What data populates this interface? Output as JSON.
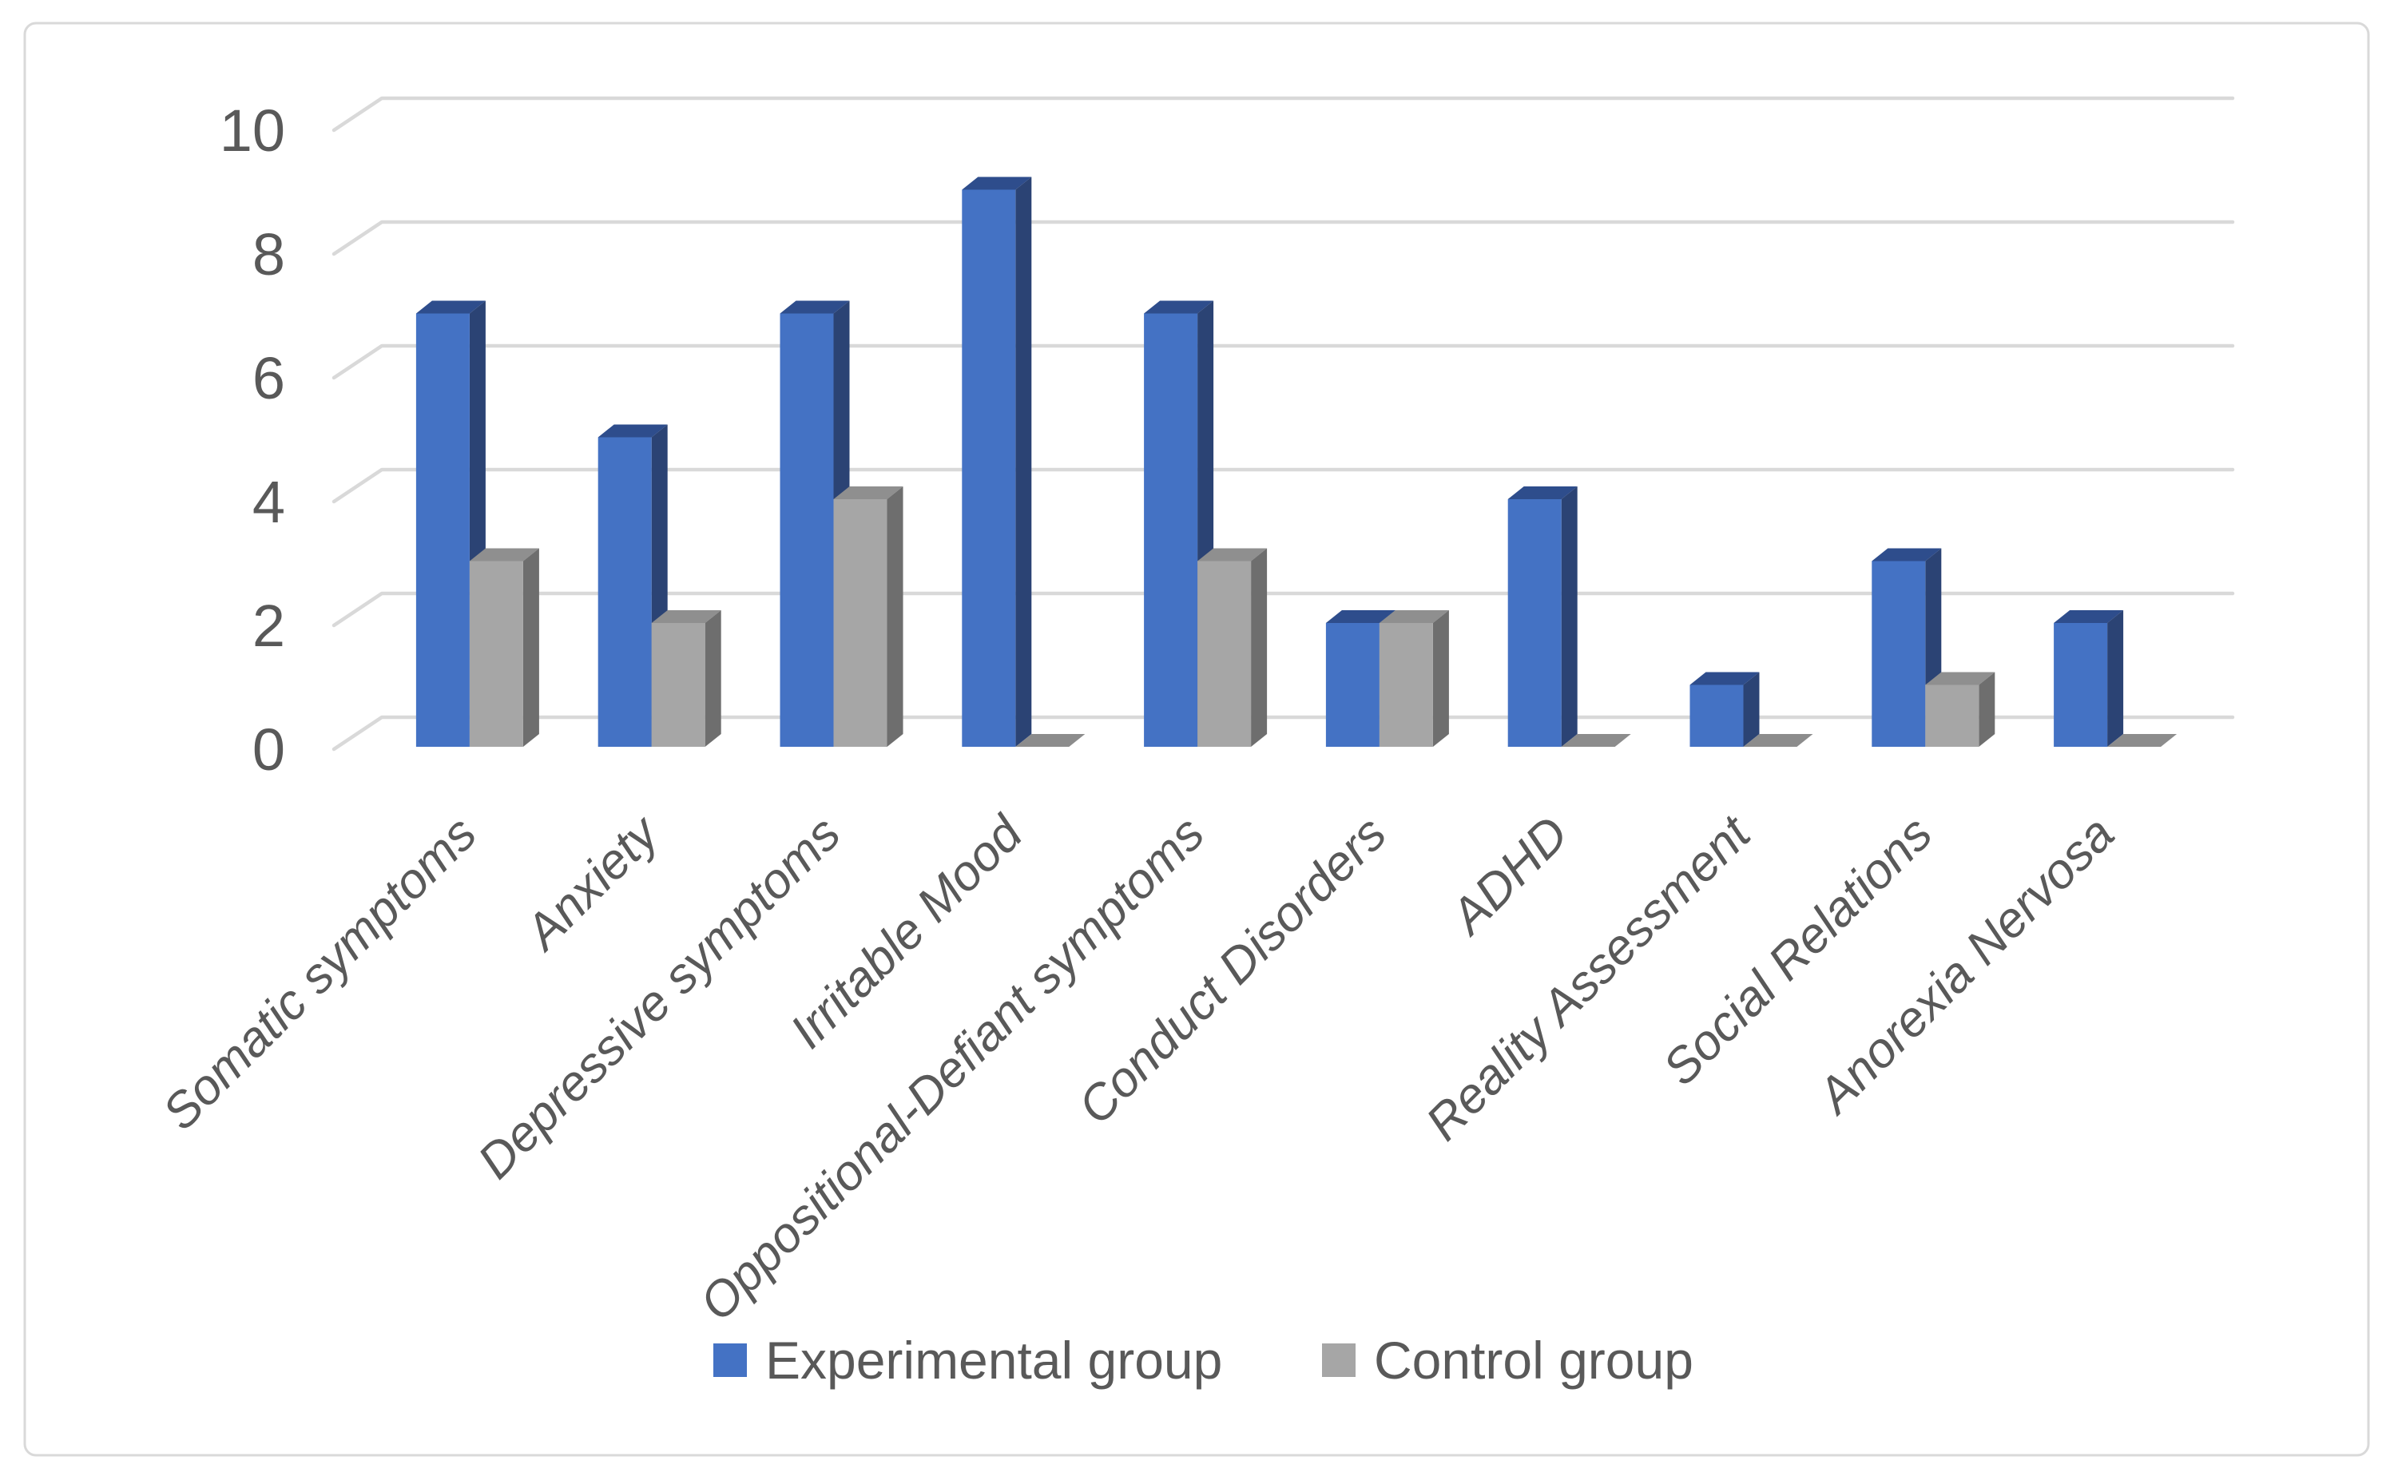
{
  "chart_data": {
    "type": "bar",
    "style": "3d-clustered-column",
    "title": "",
    "xlabel": "",
    "ylabel": "",
    "categories": [
      "Somatic symptoms",
      "Anxiety",
      "Depressive symptoms",
      "Irritable Mood",
      "Oppositional-Defiant symptoms",
      "Conduct Disorders",
      "ADHD",
      "Reality Assessment",
      "Social Relations",
      "Anorexia Nervosa"
    ],
    "series": [
      {
        "name": "Experimental group",
        "values": [
          7,
          5,
          7,
          9,
          7,
          2,
          4,
          1,
          3,
          2
        ],
        "colors": {
          "front": "#4472C4",
          "top": "#2E4D8C",
          "side": "#2B4374",
          "flat": "#4472C4"
        }
      },
      {
        "name": "Control group",
        "values": [
          3,
          2,
          4,
          0,
          3,
          2,
          0,
          0,
          1,
          0
        ],
        "colors": {
          "front": "#A6A6A6",
          "top": "#8F8F8F",
          "side": "#6E6E6E",
          "flat": "#8C8C8C"
        }
      }
    ],
    "y_axis": {
      "ticks": [
        0,
        2,
        4,
        6,
        8,
        10
      ],
      "ylim": [
        0,
        10
      ]
    },
    "grid": {
      "visible": true,
      "color": "#D9D9D9"
    },
    "legend": {
      "position": "bottom",
      "entries": [
        "Experimental group",
        "Control group"
      ]
    },
    "text_color": "#595959",
    "border_color": "#D9D9D9",
    "background": "#FFFFFF",
    "aria_label": "3D clustered column chart comparing Experimental group and Control group scores across ten symptom categories"
  }
}
